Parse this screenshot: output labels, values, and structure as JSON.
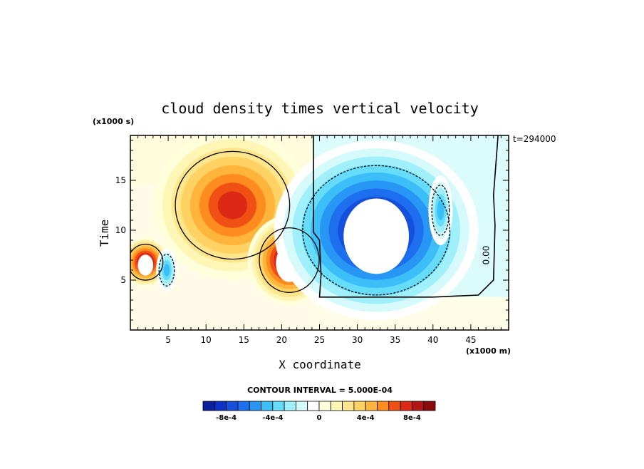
{
  "chart_data": {
    "type": "heatmap",
    "title": "cloud density times vertical velocity",
    "xlabel": "X coordinate",
    "ylabel": "Time",
    "x_units": "(x1000 m)",
    "y_units": "(x1000 s)",
    "time_label": "t=294000",
    "xlim": [
      0,
      50
    ],
    "ylim": [
      0,
      19.5
    ],
    "x_ticks": [
      5,
      10,
      15,
      20,
      25,
      30,
      35,
      40,
      45
    ],
    "y_ticks": [
      5,
      10,
      15
    ],
    "contour_interval_text": "CONTOUR INTERVAL = 5.000E-04",
    "contour_label": "0.00",
    "colorbar": {
      "levels": [
        "-8e-4",
        "-4e-4",
        "0",
        "4e-4",
        "8e-4"
      ],
      "colors": [
        "#0a1ea0",
        "#0a32c8",
        "#1450dc",
        "#1e6ef0",
        "#2896f5",
        "#3cbef8",
        "#64dcfa",
        "#a0f0fc",
        "#d6fafc",
        "#ffffff",
        "#ffffdc",
        "#fff5b4",
        "#ffe68c",
        "#ffd264",
        "#ffb43c",
        "#ff8c1e",
        "#f05014",
        "#dc2814",
        "#b41414",
        "#8c0a0a"
      ]
    },
    "features": [
      {
        "sign": "positive",
        "x": 2.0,
        "y": 6.8,
        "peak": 0.001,
        "saturated": true
      },
      {
        "sign": "positive",
        "x": 13.5,
        "y": 12.5,
        "peak": 0.0008
      },
      {
        "sign": "positive",
        "x": 21.0,
        "y": 7.0,
        "peak": 0.001,
        "saturated": true
      },
      {
        "sign": "negative",
        "x": 4.8,
        "y": 6.0,
        "peak": -0.0005
      },
      {
        "sign": "negative",
        "x": 32.5,
        "y": 10.0,
        "peak": -0.001,
        "saturated": true
      },
      {
        "sign": "negative",
        "x": 41.0,
        "y": 12.0,
        "peak": -0.0005
      }
    ]
  }
}
